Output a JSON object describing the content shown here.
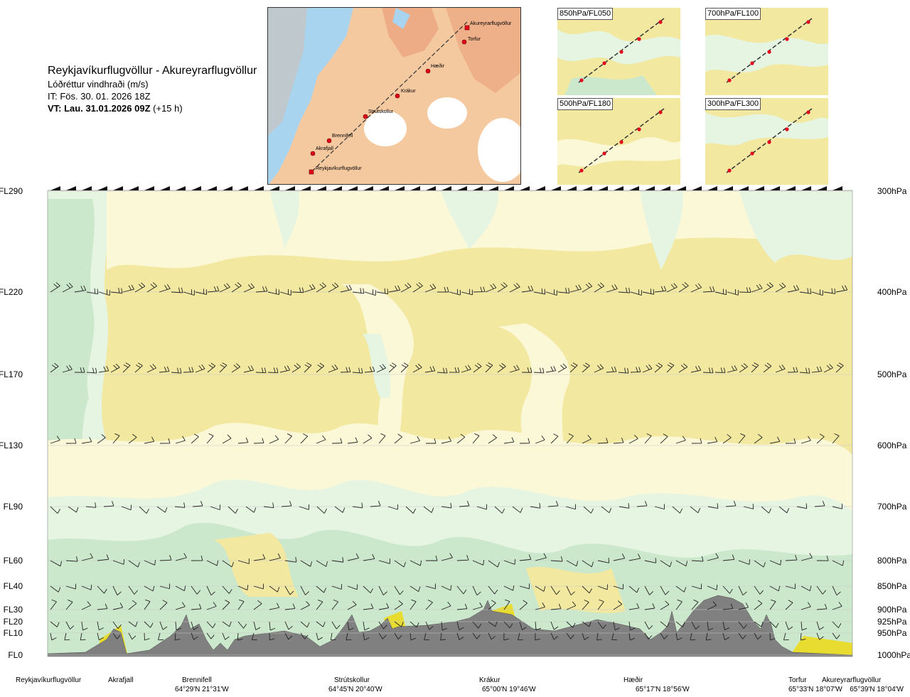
{
  "header": {
    "route_title": "Reykjavíkurflugvöllur - Akureyrarflugvöllur",
    "parameter": "Lóðréttur vindhraði (m/s)",
    "issue_time": "IT: Fös. 30. 01. 2026 18Z",
    "valid_time_bold": "VT: Lau. 31.01.2026 09Z",
    "valid_offset": "(+15 h)"
  },
  "map": {
    "waypoints": [
      "Akureyrarflugvöllur",
      "Torfur",
      "Hæðir",
      "Krákur",
      "Strútskollur",
      "Brennifell",
      "Akrafjall",
      "Reykjavíkurflugvöllur"
    ]
  },
  "level_panels": [
    "850hPa/FL050",
    "700hPa/FL100",
    "500hPa/FL180",
    "300hPa/FL300"
  ],
  "chart_data": {
    "type": "heatmap",
    "title": "Lóðréttur vindhraði (m/s)",
    "left_axis_flight_levels": [
      "FL290",
      "FL220",
      "FL170",
      "FL130",
      "FL90",
      "FL60",
      "FL40",
      "FL30",
      "FL20",
      "FL10",
      "FL0"
    ],
    "right_axis_pressure_levels": [
      "300hPa",
      "400hPa",
      "500hPa",
      "600hPa",
      "700hPa",
      "800hPa",
      "850hPa",
      "900hPa",
      "925hPa",
      "950hPa",
      "1000hPa"
    ],
    "pressure_values_hPa": [
      300,
      400,
      500,
      600,
      700,
      800,
      850,
      900,
      925,
      950,
      1000
    ],
    "x_stations": [
      {
        "name": "Reykjavíkurflugvöllur",
        "coords": ""
      },
      {
        "name": "Akrafjall",
        "coords": ""
      },
      {
        "name": "Brennifell",
        "coords": "64°29'N 21°31'W"
      },
      {
        "name": "Strútskollur",
        "coords": "64°45'N 20°40'W"
      },
      {
        "name": "Krákur",
        "coords": "65°00'N 19°46'W"
      },
      {
        "name": "Hæðir",
        "coords": "65°17'N 18°56'W"
      },
      {
        "name": "Torfur",
        "coords": "65°33'N 18°07'W"
      },
      {
        "name": "Akureyrarflugvöllur",
        "coords": "65°39'N 18°04'W"
      }
    ],
    "colors": {
      "upward": "#f2e8a0",
      "weak_upward": "#fbf8d8",
      "weak_downward": "#e6f4e2",
      "downward": "#cce8cc",
      "strong_up": "#e8dc30",
      "terrain": "#808080"
    }
  }
}
